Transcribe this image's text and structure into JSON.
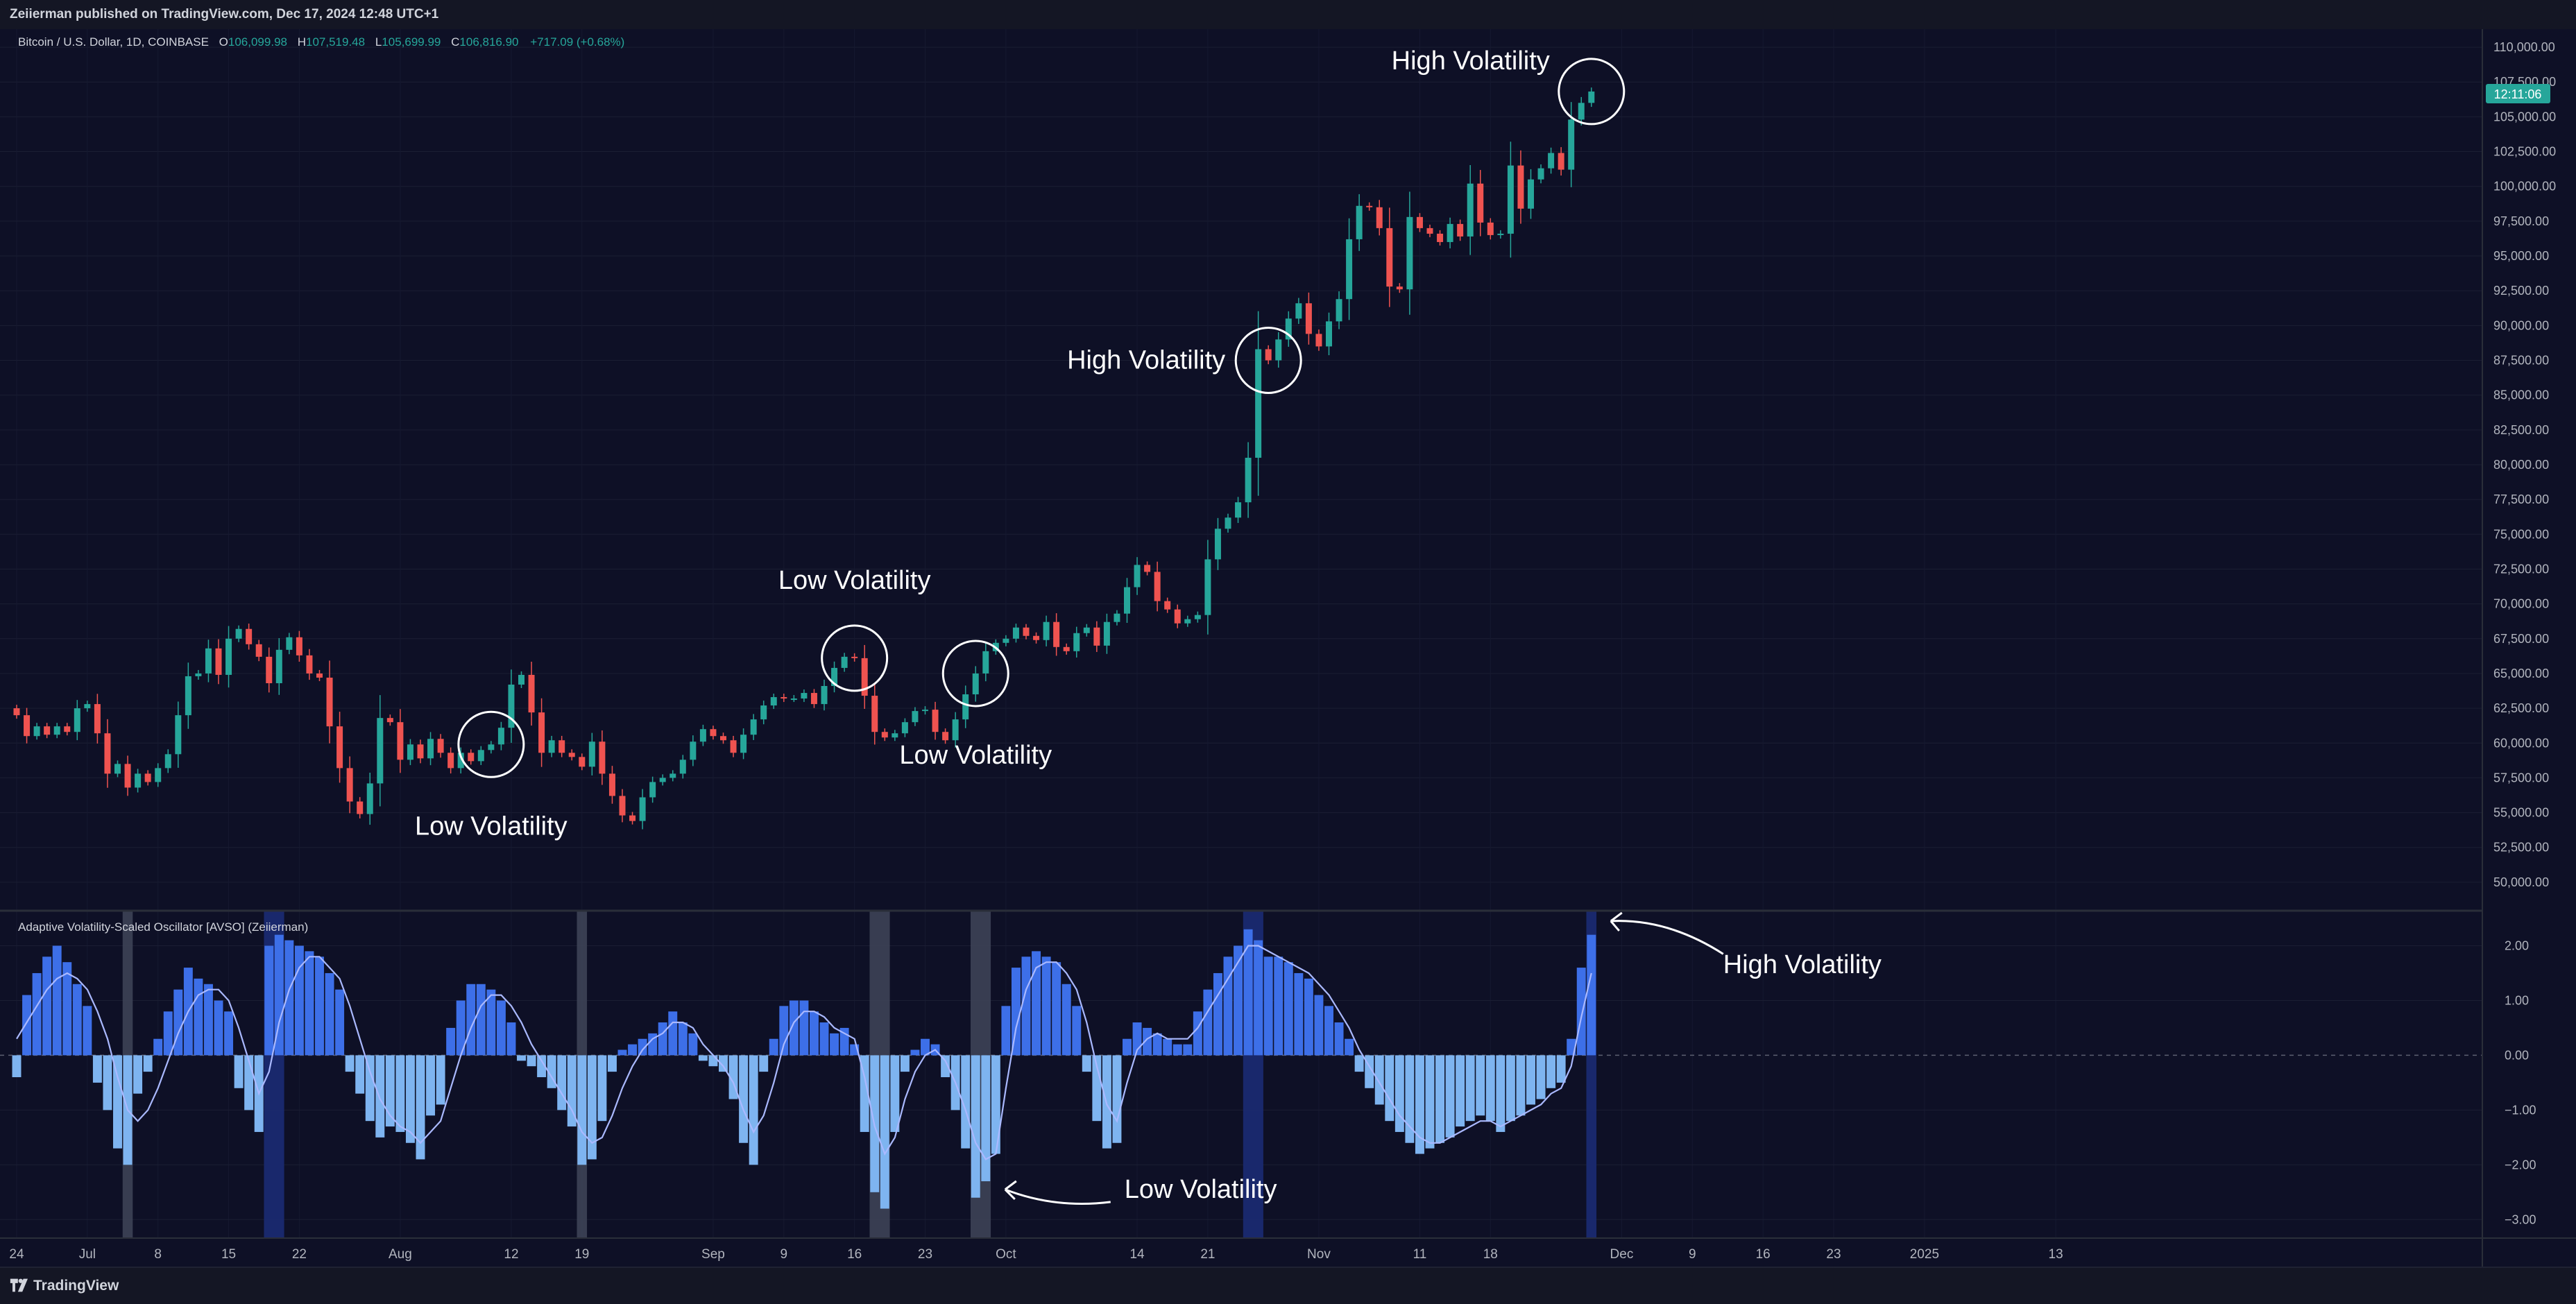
{
  "header": {
    "publisher": "Zeiierman published on TradingView.com, Dec 17, 2024 12:48 UTC+1"
  },
  "footer": {
    "brand": "TradingView"
  },
  "colors": {
    "background": "#0e1026",
    "up": "#26a69a",
    "down": "#ef5350",
    "osc_strong": "#3d6fe8",
    "osc_weak": "#7eb4f0",
    "signal": "#aab9ff",
    "highlight_low": "#3d4357",
    "highlight_high": "#1a2a70"
  },
  "chart_data": [
    {
      "type": "candlestick",
      "legend": {
        "symbol": "Bitcoin / U.S. Dollar, 1D, COINBASE",
        "o_label": "O",
        "o": "106,099.98",
        "h_label": "H",
        "h": "107,519.48",
        "l_label": "L",
        "l": "105,699.99",
        "c_label": "C",
        "c": "106,816.90",
        "change": "+717.09 (+0.68%)"
      },
      "last_price_tag": "12:11:06",
      "ylim": [
        48500,
        111000
      ],
      "y_ticks": [
        "110,000.00",
        "107,500.00",
        "105,000.00",
        "102,500.00",
        "100,000.00",
        "97,500.00",
        "95,000.00",
        "92,500.00",
        "90,000.00",
        "87,500.00",
        "85,000.00",
        "82,500.00",
        "80,000.00",
        "77,500.00",
        "75,000.00",
        "72,500.00",
        "70,000.00",
        "67,500.00",
        "65,000.00",
        "62,500.00",
        "60,000.00",
        "57,500.00",
        "55,000.00",
        "52,500.00",
        "50,000.00"
      ],
      "closes": [
        62000,
        60500,
        61200,
        60600,
        61200,
        60800,
        62500,
        62800,
        60700,
        57800,
        58500,
        56800,
        57800,
        57200,
        58200,
        59200,
        62000,
        64800,
        65000,
        66800,
        64900,
        67500,
        68200,
        67100,
        66200,
        64300,
        66700,
        67600,
        66300,
        65000,
        64700,
        61200,
        58200,
        55800,
        54900,
        57100,
        61800,
        61500,
        58800,
        59900,
        58900,
        60300,
        59300,
        58200,
        59300,
        58700,
        59500,
        59900,
        61100,
        64200,
        64900,
        62200,
        59300,
        60200,
        59300,
        59000,
        58300,
        60100,
        57800,
        56200,
        54800,
        54400,
        56100,
        57200,
        57500,
        57800,
        58800,
        60100,
        61000,
        60500,
        60200,
        59300,
        60600,
        61700,
        62700,
        63300,
        63200,
        63200,
        63600,
        62800,
        64100,
        65400,
        66200,
        66100,
        63400,
        60800,
        60400,
        60700,
        61500,
        62300,
        62400,
        60800,
        60200,
        61700,
        63500,
        65000,
        66600,
        67200,
        67500,
        68300,
        67700,
        67400,
        68700,
        66900,
        66600,
        67900,
        68300,
        67000,
        68700,
        69300,
        71200,
        72800,
        72300,
        70200,
        69600,
        68600,
        68900,
        69200,
        73200,
        75400,
        76200,
        77300,
        80500,
        88300,
        87500,
        89000,
        90500,
        91600,
        89400,
        88500,
        90300,
        91900,
        96200,
        98600,
        98500,
        97000,
        92800,
        92600,
        97800,
        97000,
        96600,
        96000,
        97300,
        96400,
        100200,
        97400,
        96500,
        96600,
        101500,
        98400,
        100500,
        101300,
        102400,
        101200,
        104800,
        106000,
        106817
      ],
      "annotations": [
        {
          "text": "Low Volatility",
          "at": 47,
          "label_pos": "below"
        },
        {
          "text": "Low Volatility",
          "at": 83,
          "label_pos": "above"
        },
        {
          "text": "Low Volatility",
          "at": 95,
          "label_pos": "below"
        },
        {
          "text": "High Volatility",
          "at": 124,
          "label_pos": "left"
        },
        {
          "text": "High Volatility",
          "at": 156,
          "label_pos": "above-left"
        }
      ]
    },
    {
      "type": "bar",
      "title": "Adaptive Volatility-Scaled Oscillator [AVSO] (Zeiierman)",
      "ylim": [
        -3.3,
        2.5
      ],
      "y_ticks": [
        "2.00",
        "1.00",
        "0.00",
        "−1.00",
        "−2.00",
        "−3.00"
      ],
      "values": [
        -0.4,
        1.1,
        1.5,
        1.8,
        2.0,
        1.7,
        1.3,
        0.9,
        -0.5,
        -1.0,
        -1.7,
        -2.0,
        -0.7,
        -0.3,
        0.3,
        0.8,
        1.2,
        1.6,
        1.4,
        1.3,
        1.0,
        0.8,
        -0.6,
        -1.0,
        -1.4,
        2.0,
        2.2,
        2.1,
        2.0,
        1.9,
        1.8,
        1.5,
        1.2,
        -0.3,
        -0.7,
        -1.2,
        -1.5,
        -1.3,
        -1.4,
        -1.6,
        -1.9,
        -1.1,
        -0.9,
        0.5,
        1.0,
        1.3,
        1.3,
        1.2,
        1.0,
        0.6,
        -0.1,
        -0.2,
        -0.4,
        -0.6,
        -1.0,
        -1.3,
        -2.0,
        -1.9,
        -1.2,
        -0.3,
        0.1,
        0.2,
        0.3,
        0.4,
        0.6,
        0.8,
        0.6,
        0.4,
        -0.1,
        -0.2,
        -0.3,
        -0.8,
        -1.6,
        -2.0,
        -0.3,
        0.3,
        0.9,
        1.0,
        1.0,
        0.8,
        0.6,
        0.4,
        0.5,
        0.2,
        -1.4,
        -2.5,
        -2.8,
        -1.4,
        -0.3,
        0.1,
        0.3,
        0.2,
        -0.4,
        -1.0,
        -1.7,
        -2.6,
        -2.3,
        -1.8,
        0.9,
        1.6,
        1.8,
        1.9,
        1.8,
        1.7,
        1.3,
        0.9,
        -0.3,
        -1.2,
        -1.7,
        -1.6,
        0.3,
        0.6,
        0.5,
        0.4,
        0.3,
        0.2,
        0.2,
        0.8,
        1.2,
        1.5,
        1.8,
        2.0,
        2.3,
        2.1,
        1.8,
        1.8,
        1.7,
        1.5,
        1.4,
        1.1,
        0.9,
        0.6,
        0.3,
        -0.3,
        -0.6,
        -0.9,
        -1.2,
        -1.4,
        -1.6,
        -1.8,
        -1.7,
        -1.6,
        -1.5,
        -1.3,
        -1.2,
        -1.1,
        -1.2,
        -1.4,
        -1.2,
        -1.1,
        -0.9,
        -0.8,
        -0.6,
        -0.5,
        0.3,
        1.6,
        2.2
      ],
      "signal": [
        0.3,
        0.6,
        0.9,
        1.2,
        1.4,
        1.5,
        1.4,
        1.2,
        0.8,
        0.3,
        -0.4,
        -1.0,
        -1.2,
        -1.0,
        -0.6,
        -0.1,
        0.4,
        0.8,
        1.1,
        1.2,
        1.2,
        1.0,
        0.5,
        -0.1,
        -0.7,
        -0.3,
        0.6,
        1.2,
        1.6,
        1.8,
        1.8,
        1.6,
        1.4,
        0.9,
        0.3,
        -0.3,
        -0.8,
        -1.1,
        -1.3,
        -1.4,
        -1.6,
        -1.4,
        -1.2,
        -0.6,
        0.0,
        0.5,
        0.9,
        1.1,
        1.1,
        0.9,
        0.6,
        0.2,
        -0.1,
        -0.4,
        -0.7,
        -1.0,
        -1.4,
        -1.6,
        -1.5,
        -1.1,
        -0.6,
        -0.2,
        0.1,
        0.3,
        0.4,
        0.6,
        0.6,
        0.5,
        0.2,
        0.0,
        -0.2,
        -0.5,
        -1.0,
        -1.4,
        -1.1,
        -0.5,
        0.2,
        0.6,
        0.8,
        0.8,
        0.7,
        0.5,
        0.4,
        0.3,
        -0.4,
        -1.3,
        -1.8,
        -1.5,
        -0.8,
        -0.3,
        0.0,
        0.1,
        -0.1,
        -0.5,
        -1.0,
        -1.6,
        -1.9,
        -1.8,
        -0.6,
        0.5,
        1.2,
        1.6,
        1.7,
        1.7,
        1.5,
        1.2,
        0.6,
        -0.2,
        -0.9,
        -1.2,
        -0.5,
        0.1,
        0.3,
        0.4,
        0.3,
        0.3,
        0.3,
        0.5,
        0.8,
        1.1,
        1.4,
        1.7,
        2.0,
        2.0,
        1.9,
        1.8,
        1.7,
        1.6,
        1.5,
        1.3,
        1.1,
        0.8,
        0.5,
        0.1,
        -0.2,
        -0.5,
        -0.8,
        -1.1,
        -1.3,
        -1.5,
        -1.6,
        -1.6,
        -1.5,
        -1.4,
        -1.3,
        -1.2,
        -1.2,
        -1.3,
        -1.2,
        -1.1,
        -1.0,
        -0.9,
        -0.7,
        -0.6,
        -0.2,
        0.7,
        1.5
      ],
      "highlight_bands": [
        {
          "from": 11,
          "to": 11,
          "kind": "low"
        },
        {
          "from": 25,
          "to": 26,
          "kind": "high"
        },
        {
          "from": 56,
          "to": 56,
          "kind": "low"
        },
        {
          "from": 85,
          "to": 86,
          "kind": "low"
        },
        {
          "from": 95,
          "to": 96,
          "kind": "low"
        },
        {
          "from": 122,
          "to": 123,
          "kind": "high"
        },
        {
          "from": 156,
          "to": 156,
          "kind": "high"
        }
      ],
      "annotations": [
        {
          "text": "High Volatility",
          "at": 156
        },
        {
          "text": "Low Volatility",
          "at": 96
        }
      ]
    }
  ],
  "x_axis": {
    "labels": [
      {
        "text": "24",
        "at": 0
      },
      {
        "text": "Jul",
        "at": 7
      },
      {
        "text": "8",
        "at": 14
      },
      {
        "text": "15",
        "at": 21
      },
      {
        "text": "22",
        "at": 28
      },
      {
        "text": "Aug",
        "at": 38
      },
      {
        "text": "12",
        "at": 49
      },
      {
        "text": "19",
        "at": 56
      },
      {
        "text": "Sep",
        "at": 69
      },
      {
        "text": "9",
        "at": 76
      },
      {
        "text": "16",
        "at": 83
      },
      {
        "text": "23",
        "at": 90
      },
      {
        "text": "Oct",
        "at": 98
      },
      {
        "text": "14",
        "at": 111
      },
      {
        "text": "21",
        "at": 118
      },
      {
        "text": "Nov",
        "at": 129
      },
      {
        "text": "11",
        "at": 139
      },
      {
        "text": "18",
        "at": 146
      },
      {
        "text": "Dec",
        "at": 159
      },
      {
        "text": "9",
        "at": 166
      },
      {
        "text": "16",
        "at": 173
      },
      {
        "text": "23",
        "at": 180
      },
      {
        "text": "2025",
        "at": 189
      },
      {
        "text": "13",
        "at": 202
      }
    ]
  }
}
